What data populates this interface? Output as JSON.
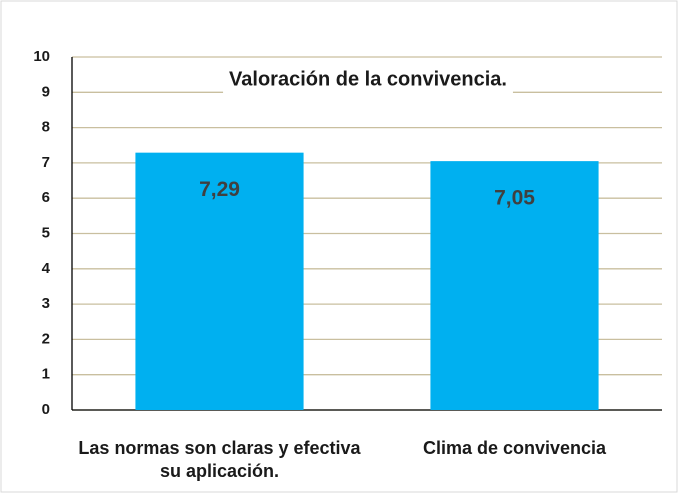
{
  "chart_data": {
    "type": "bar",
    "title": "Valoración de la convivencia.",
    "categories": [
      "Las normas son claras y efectiva su aplicación.",
      "Clima de convivencia"
    ],
    "values": [
      7.29,
      7.05
    ],
    "value_labels": [
      "7,29",
      "7,05"
    ],
    "color": "#00b0f0",
    "ylim": [
      0,
      10
    ],
    "yticks": [
      0,
      1,
      2,
      3,
      4,
      5,
      6,
      7,
      8,
      9,
      10
    ],
    "grid": true
  }
}
